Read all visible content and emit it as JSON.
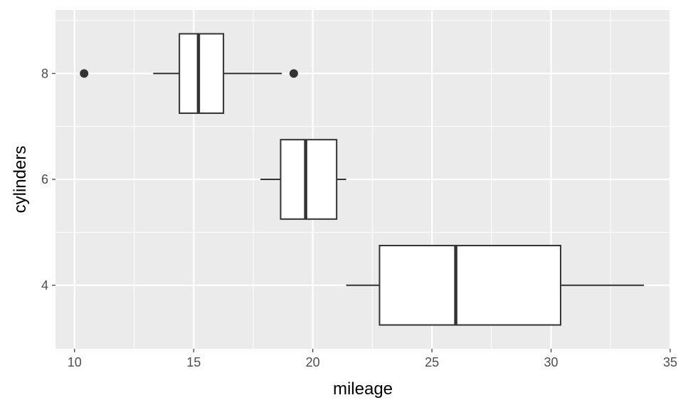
{
  "chart_data": {
    "type": "boxplot",
    "orientation": "horizontal",
    "xlabel": "mileage",
    "ylabel": "cylinders",
    "xlim": [
      9.2,
      35.0
    ],
    "ylim": [
      2.8,
      9.2
    ],
    "xticks": [
      10,
      15,
      20,
      25,
      30,
      35
    ],
    "xminor": [
      12.5,
      17.5,
      22.5,
      27.5,
      32.5
    ],
    "yticks": [
      4,
      6,
      8
    ],
    "yminor": [
      5,
      7,
      9
    ],
    "grid": true,
    "colors": {
      "panel": "#ebebeb",
      "grid": "#ffffff",
      "box_fill": "#ffffff",
      "box_stroke": "#333333",
      "tick": "#333333"
    },
    "groups": [
      {
        "y": 8,
        "whisker_low": 13.3,
        "q1": 14.4,
        "median": 15.2,
        "q3": 16.25,
        "whisker_high": 18.7,
        "outliers": [
          10.4,
          19.2
        ]
      },
      {
        "y": 6,
        "whisker_low": 17.8,
        "q1": 18.65,
        "median": 19.7,
        "q3": 21.0,
        "whisker_high": 21.4,
        "outliers": []
      },
      {
        "y": 4,
        "whisker_low": 21.4,
        "q1": 22.8,
        "median": 26.0,
        "q3": 30.4,
        "whisker_high": 33.9,
        "outliers": []
      }
    ]
  }
}
